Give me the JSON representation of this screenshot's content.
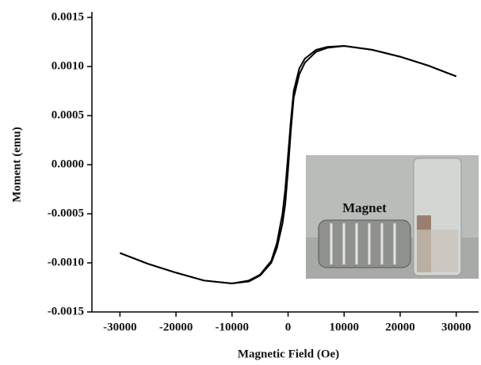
{
  "chart_data": {
    "type": "line",
    "x_label": "Magnetic Field (Oe)",
    "y_label": "Moment (emu)",
    "inset_label": "Magnet",
    "x": [
      30000,
      25000,
      20000,
      15000,
      10000,
      7000,
      5000,
      3000,
      2000,
      1000,
      500,
      0,
      -500,
      -1000,
      -2000,
      -3000,
      -5000,
      -7000,
      -10000,
      -15000,
      -20000,
      -25000,
      -30000
    ],
    "series": [
      {
        "color": "#000000",
        "values": [
          0.0009,
          0.00101,
          0.0011,
          0.00117,
          0.00121,
          0.0012,
          0.00117,
          0.00108,
          0.00098,
          0.00075,
          0.00045,
          0.0001,
          -0.00025,
          -0.0005,
          -0.0008,
          -0.00098,
          -0.00112,
          -0.00118,
          -0.00121,
          -0.00118,
          -0.0011,
          -0.00101,
          -0.0009
        ]
      },
      {
        "color": "#000000",
        "values": [
          0.0009,
          0.00101,
          0.0011,
          0.00117,
          0.00121,
          0.00119,
          0.00115,
          0.00104,
          0.00092,
          0.00068,
          0.00035,
          -5e-05,
          -0.0004,
          -0.0006,
          -0.00085,
          -0.001,
          -0.00113,
          -0.00119,
          -0.00121,
          -0.00118,
          -0.0011,
          -0.00101,
          -0.0009
        ]
      }
    ],
    "xlim": [
      -35000,
      34000
    ],
    "ylim": [
      -0.0015,
      0.0015
    ],
    "xticks": [
      -30000,
      -20000,
      -10000,
      0,
      10000,
      20000,
      30000
    ],
    "yticks": [
      {
        "value": -0.0015,
        "label": "-0.0015"
      },
      {
        "value": -0.001,
        "label": "-0.0010"
      },
      {
        "value": -0.0005,
        "label": "-0.0005"
      },
      {
        "value": 0,
        "label": "0.0000"
      },
      {
        "value": 0.0005,
        "label": "0.0005"
      },
      {
        "value": 0.001,
        "label": "0.0010"
      },
      {
        "value": 0.0015,
        "label": "0.0015"
      }
    ]
  }
}
